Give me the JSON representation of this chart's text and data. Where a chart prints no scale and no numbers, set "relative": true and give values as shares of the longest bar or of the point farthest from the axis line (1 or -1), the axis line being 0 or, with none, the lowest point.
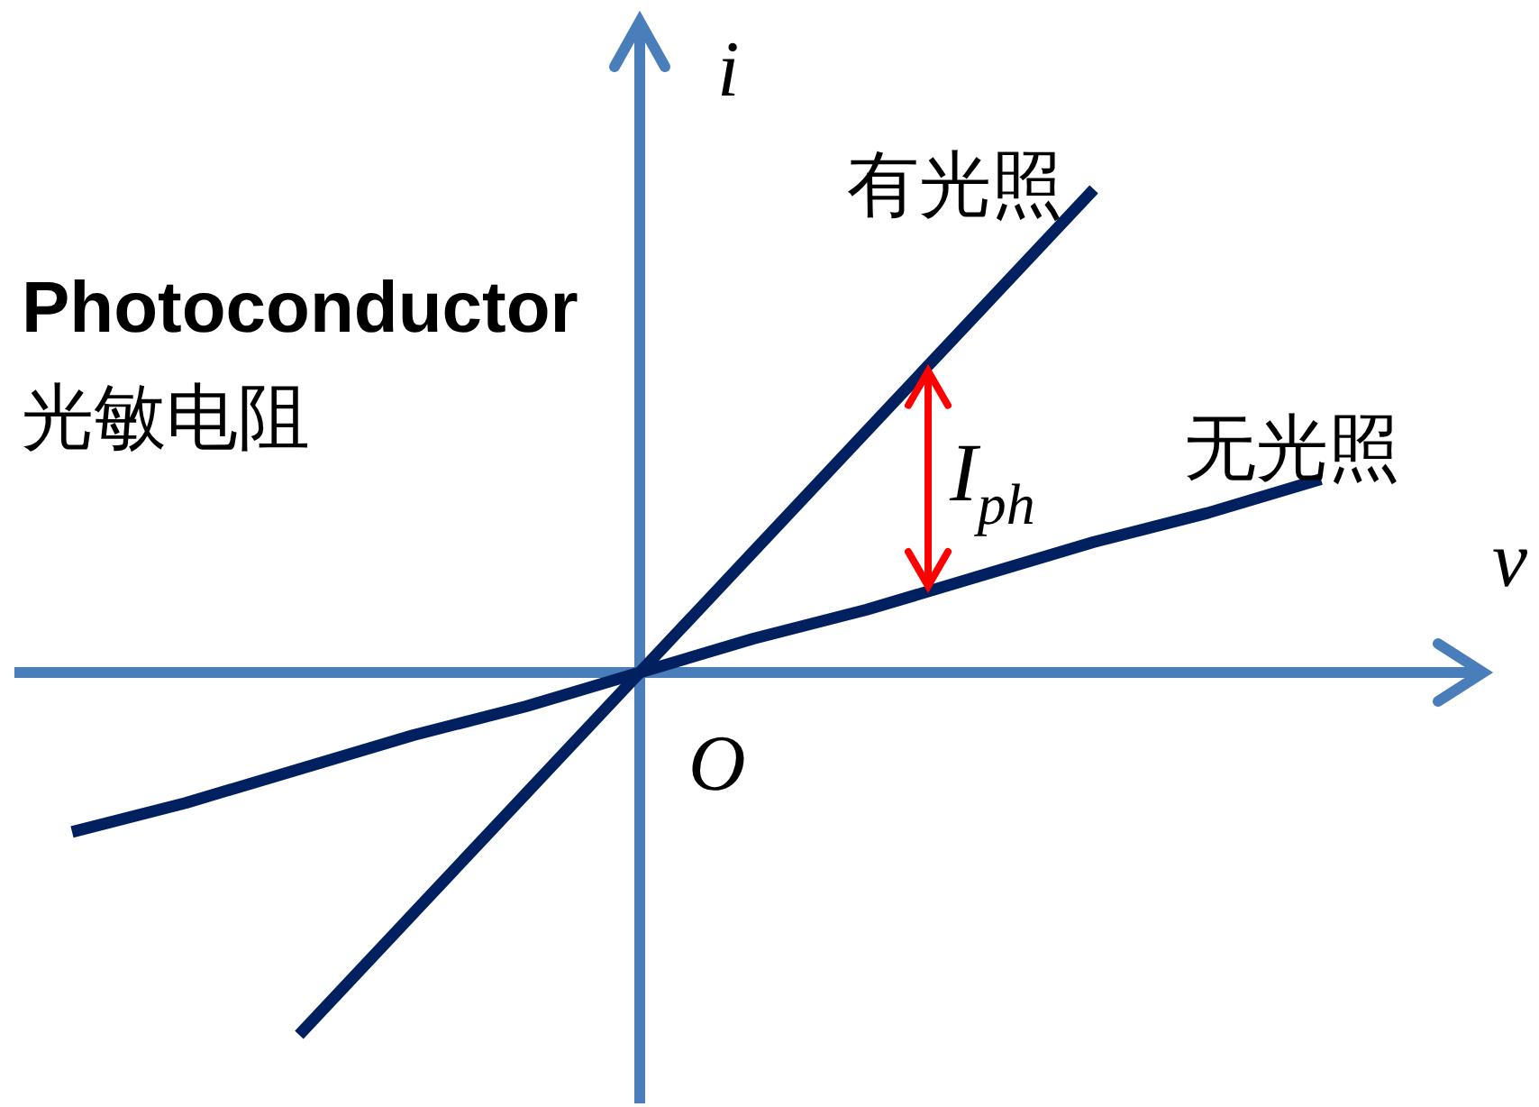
{
  "chart_data": {
    "type": "line",
    "title": "Photoconductor",
    "subtitle": "光敏电阻",
    "xlabel": "v",
    "ylabel": "i",
    "relative": true,
    "categories": [
      null,
      null,
      null,
      null,
      null,
      null,
      null,
      null,
      null,
      null,
      null,
      null
    ],
    "series": [
      {
        "name": "有光照",
        "color": "#002060",
        "values": [
          null,
          null,
          -0.75,
          -0.5,
          -0.25,
          0,
          0.25,
          0.5,
          0.75,
          1,
          null,
          null
        ]
      },
      {
        "name": "无光照",
        "color": "#002060",
        "values": [
          -0.33,
          -0.27,
          -0.2,
          -0.13,
          -0.07,
          0,
          0.07,
          0.13,
          0.2,
          0.27,
          0.33,
          0.4
        ]
      }
    ],
    "ref_lines": [
      {
        "axis": "y",
        "value": 0,
        "color": "#4a7ebb"
      }
    ],
    "annotations": [
      "O",
      "I$_{ph}$"
    ]
  }
}
